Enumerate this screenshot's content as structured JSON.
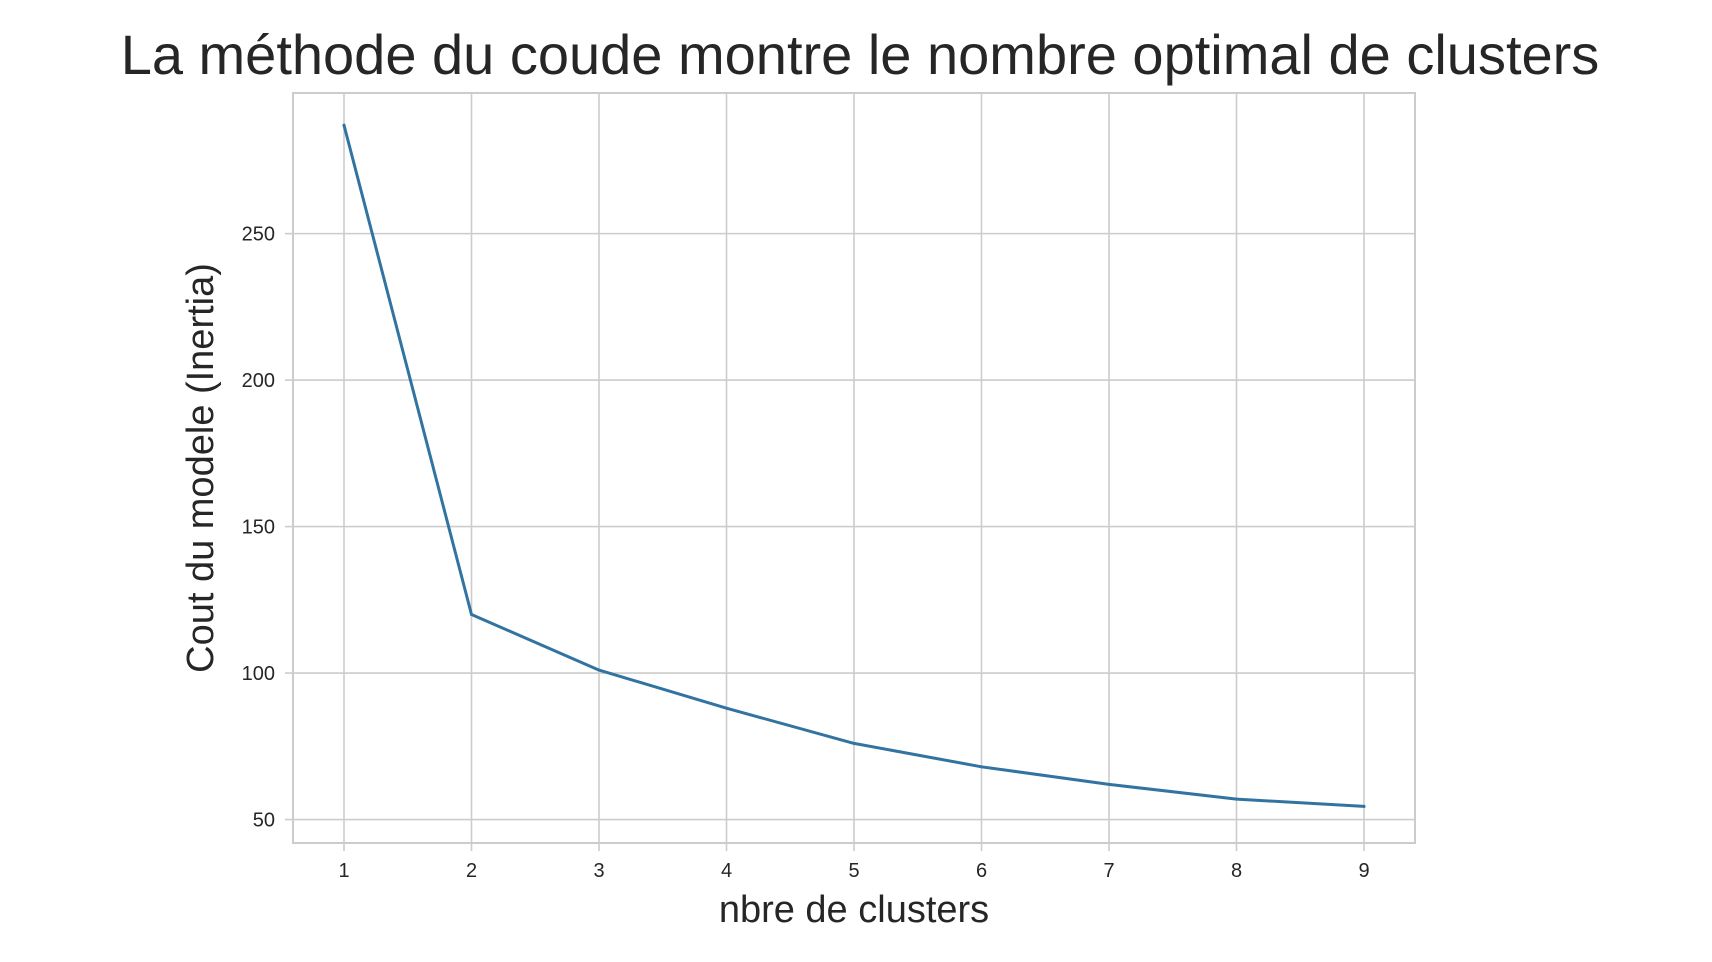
{
  "chart_data": {
    "type": "line",
    "title": "La méthode du coude montre le nombre optimal de clusters",
    "xlabel": "nbre de clusters",
    "ylabel": "Cout du modele (Inertia)",
    "x": [
      1,
      2,
      3,
      4,
      5,
      6,
      7,
      8,
      9
    ],
    "series": [
      {
        "values": [
          287,
          120,
          101,
          88,
          76,
          68,
          62,
          57,
          54.5
        ],
        "color": "#3274a1"
      }
    ],
    "xticks": [
      "1",
      "2",
      "3",
      "4",
      "5",
      "6",
      "7",
      "8",
      "9"
    ],
    "yticks": [
      "50",
      "100",
      "150",
      "200",
      "250"
    ],
    "xlim": [
      0.6,
      9.4
    ],
    "ylim": [
      42,
      298
    ],
    "grid": true,
    "legend": "none"
  }
}
